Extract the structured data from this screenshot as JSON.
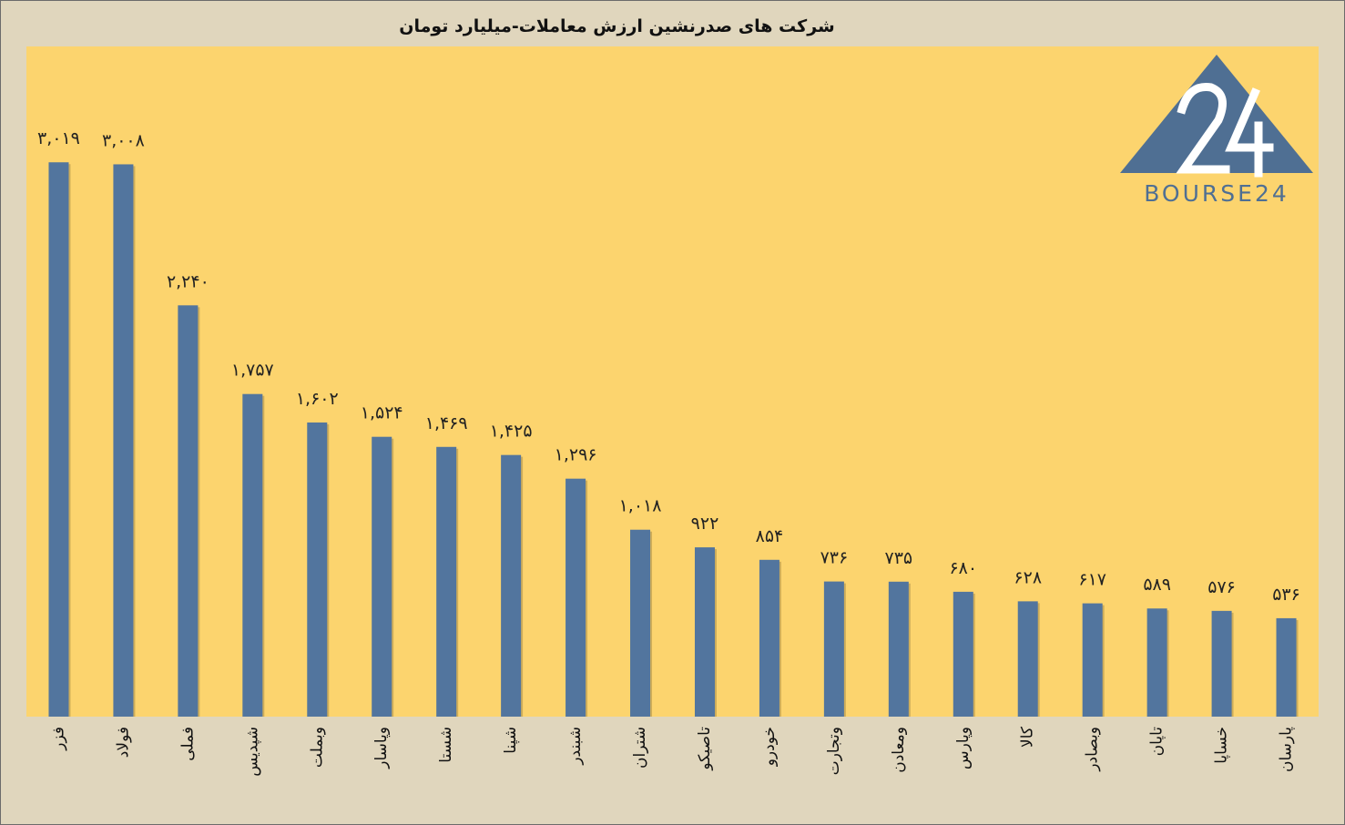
{
  "chart_data": {
    "type": "bar",
    "title": "شرکت های صدرنشین ارزش معاملات-میلیارد تومان",
    "categories": [
      "فزر",
      "فولاد",
      "فملی",
      "شپدیس",
      "وبملت",
      "وپاسار",
      "شستا",
      "شپنا",
      "شبندر",
      "شتران",
      "تاصیکو",
      "خودرو",
      "وتجارت",
      "ومعادن",
      "وپارس",
      "کالا",
      "وبصادر",
      "تاپان",
      "خساپا",
      "پارسان"
    ],
    "values": [
      3019,
      3008,
      2240,
      1757,
      1602,
      1524,
      1469,
      1425,
      1296,
      1018,
      922,
      854,
      736,
      735,
      680,
      628,
      617,
      589,
      576,
      536
    ],
    "value_labels": [
      "۳,۰۱۹",
      "۳,۰۰۸",
      "۲,۲۴۰",
      "۱,۷۵۷",
      "۱,۶۰۲",
      "۱,۵۲۴",
      "۱,۴۶۹",
      "۱,۴۲۵",
      "۱,۲۹۶",
      "۱,۰۱۸",
      "۹۲۲",
      "۸۵۴",
      "۷۳۶",
      "۷۳۵",
      "۶۸۰",
      "۶۲۸",
      "۶۱۷",
      "۵۸۹",
      "۵۷۶",
      "۵۳۶"
    ],
    "ylim": [
      0,
      3650
    ],
    "grid": false,
    "colors": {
      "bar": "#52759e",
      "plot_bg": "#fcd46e",
      "page_bg": "#e0d6bd"
    }
  },
  "logo": {
    "text": "BOURSE24",
    "color": "#4f6f93"
  }
}
